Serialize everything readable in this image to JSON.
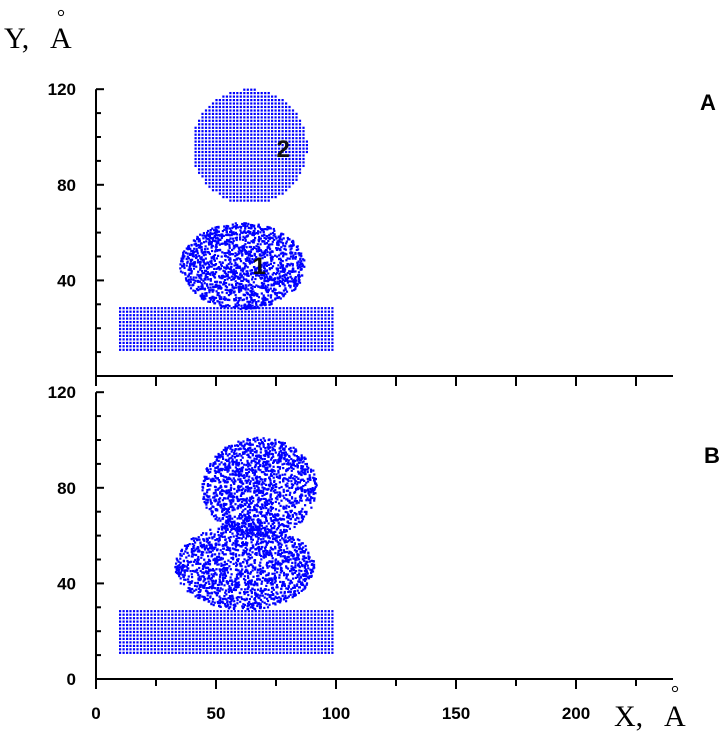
{
  "chart_data": [
    {
      "type": "scatter",
      "panel_label": "A",
      "ylabel": "Y, Å",
      "ylabel_main": "Y,",
      "ylabel_unit": "A",
      "xlim": [
        0,
        240
      ],
      "ylim": [
        0,
        120
      ],
      "yticks": [
        40,
        80,
        120
      ],
      "annotations": [
        {
          "text": "1",
          "x": 68,
          "y": 46
        },
        {
          "text": "2",
          "x": 78,
          "y": 95
        }
      ],
      "point_color": "#0000ff",
      "series": [
        {
          "shape": "rectangle",
          "x_range": [
            10,
            99
          ],
          "y_range": [
            11,
            29
          ],
          "lattice": "regular"
        },
        {
          "shape": "disordered-cluster",
          "center": [
            61,
            46
          ],
          "radius_x": 26,
          "radius_y": 18,
          "lattice": "disordered",
          "label": "1"
        },
        {
          "shape": "circle",
          "center": [
            64,
            96
          ],
          "radius": 24,
          "lattice": "regular",
          "label": "2"
        }
      ]
    },
    {
      "type": "scatter",
      "panel_label": "B",
      "xlabel": "X, Å",
      "xlabel_main": "X,",
      "xlabel_unit": "A",
      "xlim": [
        0,
        240
      ],
      "ylim": [
        0,
        120
      ],
      "xticks": [
        0,
        50,
        100,
        150,
        200
      ],
      "yticks": [
        0,
        40,
        80,
        120
      ],
      "point_color": "#0000ff",
      "series": [
        {
          "shape": "rectangle",
          "x_range": [
            10,
            99
          ],
          "y_range": [
            11,
            29
          ],
          "lattice": "regular"
        },
        {
          "shape": "disordered-cluster",
          "center": [
            62,
            47
          ],
          "radius_x": 29,
          "radius_y": 18,
          "lattice": "disordered"
        },
        {
          "shape": "disordered-cluster",
          "center": [
            68,
            80
          ],
          "radius_x": 24,
          "radius_y": 21,
          "lattice": "disordered"
        }
      ]
    }
  ]
}
